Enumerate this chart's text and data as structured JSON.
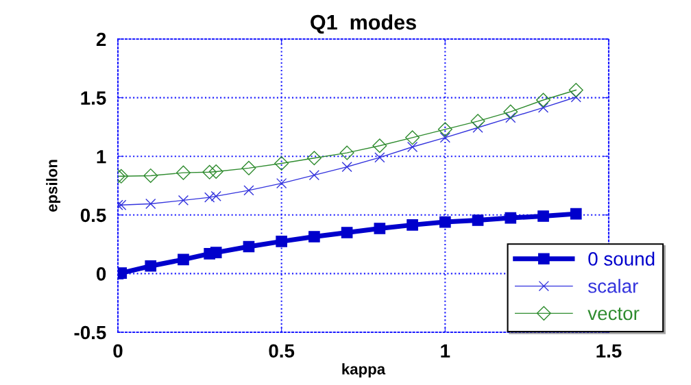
{
  "chart_data": {
    "type": "line",
    "title": "Q1  modes",
    "xlabel": "kappa",
    "ylabel": "epsilon",
    "x": [
      0,
      0.01,
      0.1,
      0.2,
      0.28,
      0.3,
      0.4,
      0.5,
      0.6,
      0.7,
      0.8,
      0.9,
      1.0,
      1.1,
      1.2,
      1.3,
      1.4
    ],
    "series": [
      {
        "name": "0 sound",
        "color": "#0000cc",
        "marker": "square",
        "values": [
          0,
          0.005,
          0.065,
          0.12,
          0.17,
          0.18,
          0.23,
          0.275,
          0.315,
          0.35,
          0.385,
          0.415,
          0.44,
          0.455,
          0.475,
          0.49,
          0.51
        ]
      },
      {
        "name": "scalar",
        "color": "#3333dd",
        "marker": "cross",
        "values": [
          0.585,
          0.585,
          0.595,
          0.625,
          0.65,
          0.66,
          0.71,
          0.77,
          0.84,
          0.91,
          0.99,
          1.08,
          1.16,
          1.245,
          1.33,
          1.415,
          1.505
        ]
      },
      {
        "name": "vector",
        "color": "#2e8b2e",
        "marker": "diamond",
        "values": [
          0.83,
          0.83,
          0.835,
          0.86,
          0.865,
          0.87,
          0.9,
          0.94,
          0.985,
          1.03,
          1.09,
          1.16,
          1.23,
          1.3,
          1.38,
          1.48,
          1.565
        ]
      }
    ],
    "xlim": [
      0,
      1.5
    ],
    "xticks": [
      0,
      0.5,
      1,
      1.5
    ],
    "ylim": [
      -0.5,
      2
    ],
    "yticks": [
      -0.5,
      0,
      0.5,
      1,
      1.5,
      2
    ],
    "grid": true,
    "legend": "bottom right",
    "line_style": "solid"
  }
}
